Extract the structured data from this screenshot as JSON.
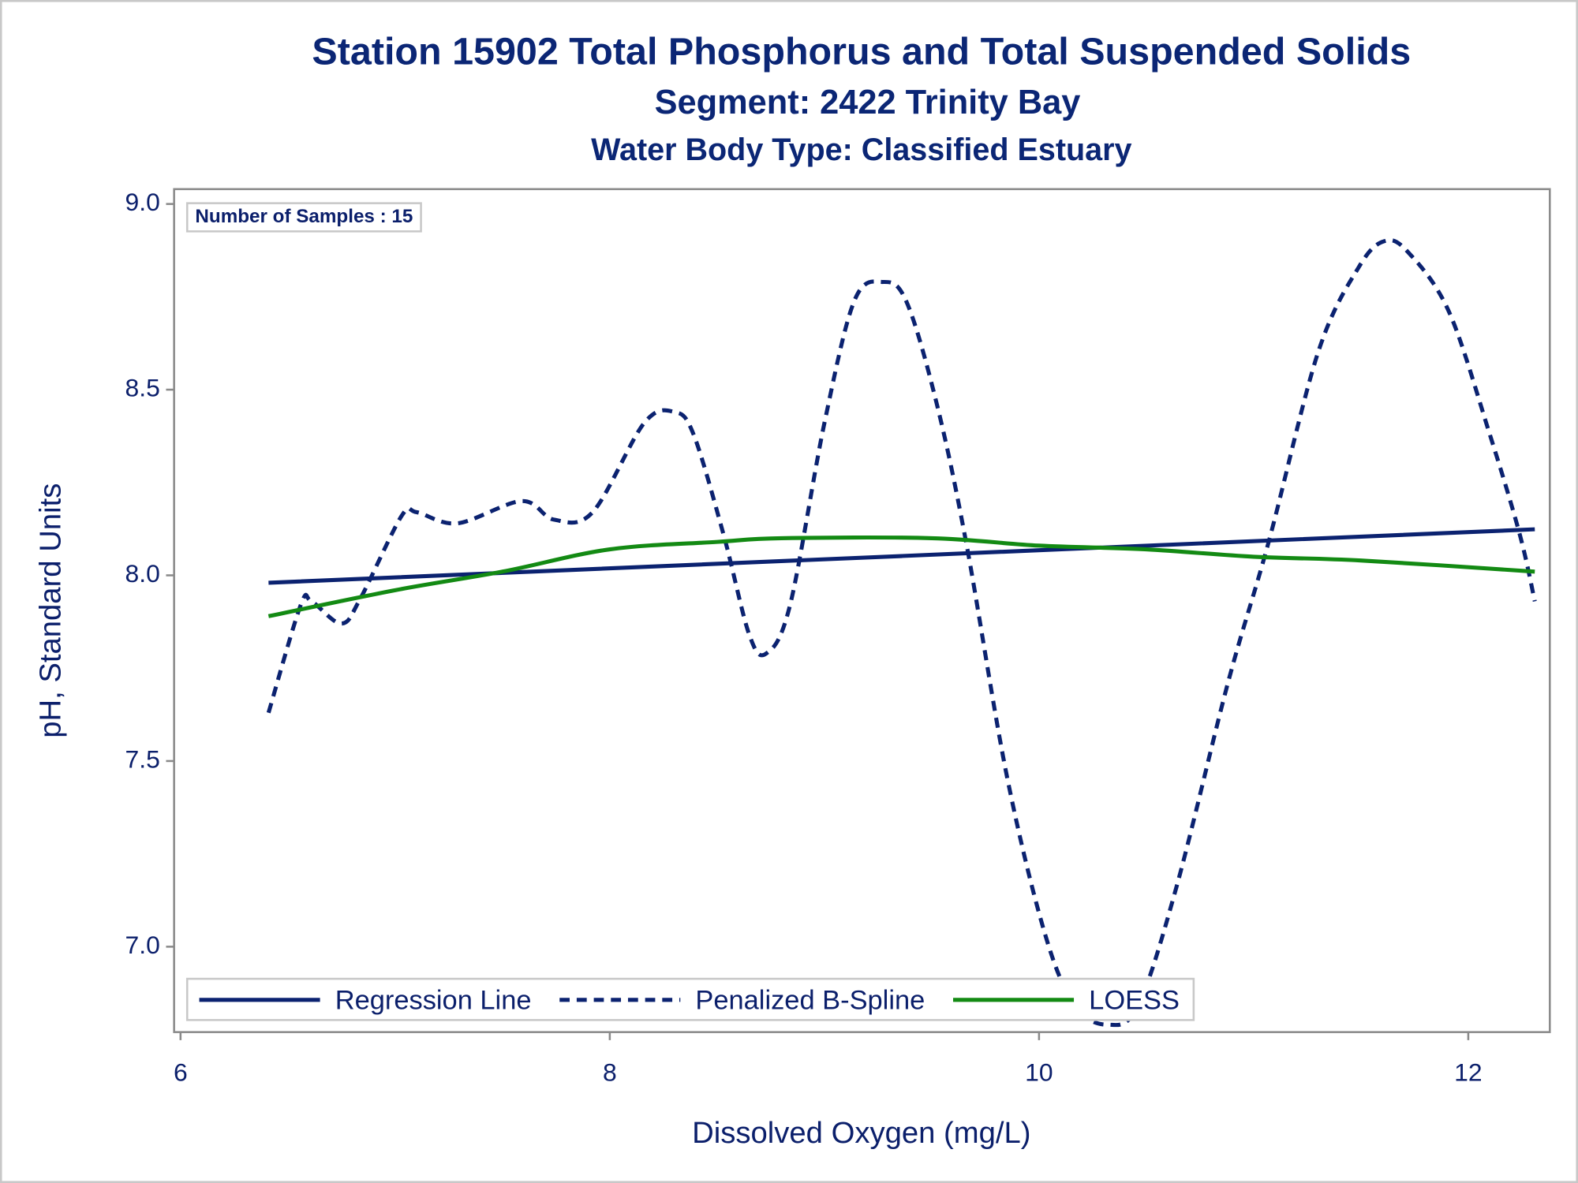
{
  "chart_data": {
    "type": "line",
    "title": "Station 15902  Total Phosphorus and Total Suspended Solids",
    "subtitle": "Segment: 2422  Trinity Bay",
    "subtitle2": "Water Body Type: Classified Estuary",
    "annotation": "Number of Samples : 15",
    "xlabel": "Dissolved Oxygen (mg/L)",
    "ylabel": "pH, Standard Units",
    "xlim": [
      5.97,
      12.38
    ],
    "ylim": [
      6.77,
      9.04
    ],
    "xticks": [
      6,
      8,
      10,
      12
    ],
    "yticks": [
      {
        "value": 7.0,
        "label": "7.0"
      },
      {
        "value": 7.5,
        "label": "7.5"
      },
      {
        "value": 8.0,
        "label": "8.0"
      },
      {
        "value": 8.5,
        "label": "8.5"
      },
      {
        "value": 9.0,
        "label": "9.0"
      }
    ],
    "grid": false,
    "legend": "bottom-left",
    "series": [
      {
        "name": "Regression Line",
        "color": "#0b2270",
        "dashed": false,
        "x": [
          6.41,
          12.31
        ],
        "values": [
          7.98,
          8.124
        ]
      },
      {
        "name": "Penalized B-Spline",
        "color": "#0b2270",
        "dashed": true,
        "x": [
          6.41,
          6.56,
          6.61,
          6.75,
          6.84,
          7.03,
          7.1,
          7.29,
          7.59,
          7.74,
          7.92,
          8.16,
          8.3,
          8.39,
          8.53,
          8.65,
          8.73,
          8.84,
          9.0,
          9.14,
          9.27,
          9.38,
          9.52,
          9.66,
          9.85,
          10.03,
          10.17,
          10.32,
          10.46,
          10.64,
          10.88,
          11.07,
          11.3,
          11.49,
          11.61,
          11.72,
          11.91,
          12.1,
          12.24,
          12.31
        ],
        "values": [
          7.63,
          7.92,
          7.93,
          7.87,
          7.94,
          8.16,
          8.17,
          8.14,
          8.2,
          8.15,
          8.17,
          8.41,
          8.44,
          8.38,
          8.11,
          7.84,
          7.79,
          7.92,
          8.41,
          8.74,
          8.79,
          8.74,
          8.47,
          8.09,
          7.46,
          7.03,
          6.84,
          6.79,
          6.84,
          7.16,
          7.71,
          8.09,
          8.6,
          8.83,
          8.9,
          8.87,
          8.71,
          8.38,
          8.11,
          7.93
        ]
      },
      {
        "name": "LOESS",
        "color": "#138a13",
        "dashed": false,
        "x": [
          6.41,
          7.0,
          7.5,
          8.0,
          8.5,
          8.8,
          9.5,
          10.0,
          10.5,
          11.0,
          11.5,
          12.31
        ],
        "values": [
          7.89,
          7.96,
          8.01,
          8.07,
          8.09,
          8.1,
          8.1,
          8.08,
          8.07,
          8.05,
          8.04,
          8.01
        ]
      }
    ]
  }
}
